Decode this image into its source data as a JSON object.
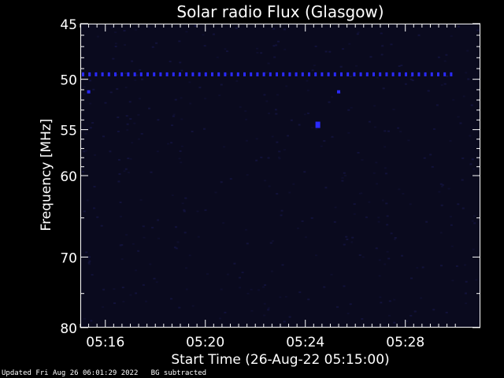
{
  "chart_data": {
    "type": "heatmap",
    "title": "Solar radio Flux (Glasgow)",
    "xlabel": "Start Time (26-Aug-22 05:15:00)",
    "ylabel": "Frequency [MHz]",
    "xlim_minutes": [
      5.25,
      5.5167
    ],
    "x_ticks": [
      "05:16",
      "05:20",
      "05:24",
      "05:28"
    ],
    "x_tick_values_hours": [
      5.2667,
      5.3333,
      5.4,
      5.4667
    ],
    "ylim": [
      45,
      80
    ],
    "y_ticks": [
      45,
      50,
      55,
      60,
      70,
      80
    ],
    "y_scale": "log",
    "grid": false,
    "colors": {
      "background": "#000000",
      "field": "#0a0a1e",
      "signal": "#2a2aff",
      "axes": "#ffffff"
    },
    "features": [
      {
        "name": "interference line",
        "freq_mhz": 49.5,
        "from": "05:15:00",
        "to": "05:30:00"
      },
      {
        "name": "spot",
        "freq_mhz": 51.2,
        "time": "05:15:20"
      },
      {
        "name": "spot",
        "freq_mhz": 54.5,
        "time": "05:24:30"
      },
      {
        "name": "spot",
        "freq_mhz": 51.2,
        "time": "05:25:20"
      }
    ]
  },
  "footer": {
    "updated": "Updated Fri Aug 26 06:01:29 2022",
    "note": "BG subtracted"
  }
}
